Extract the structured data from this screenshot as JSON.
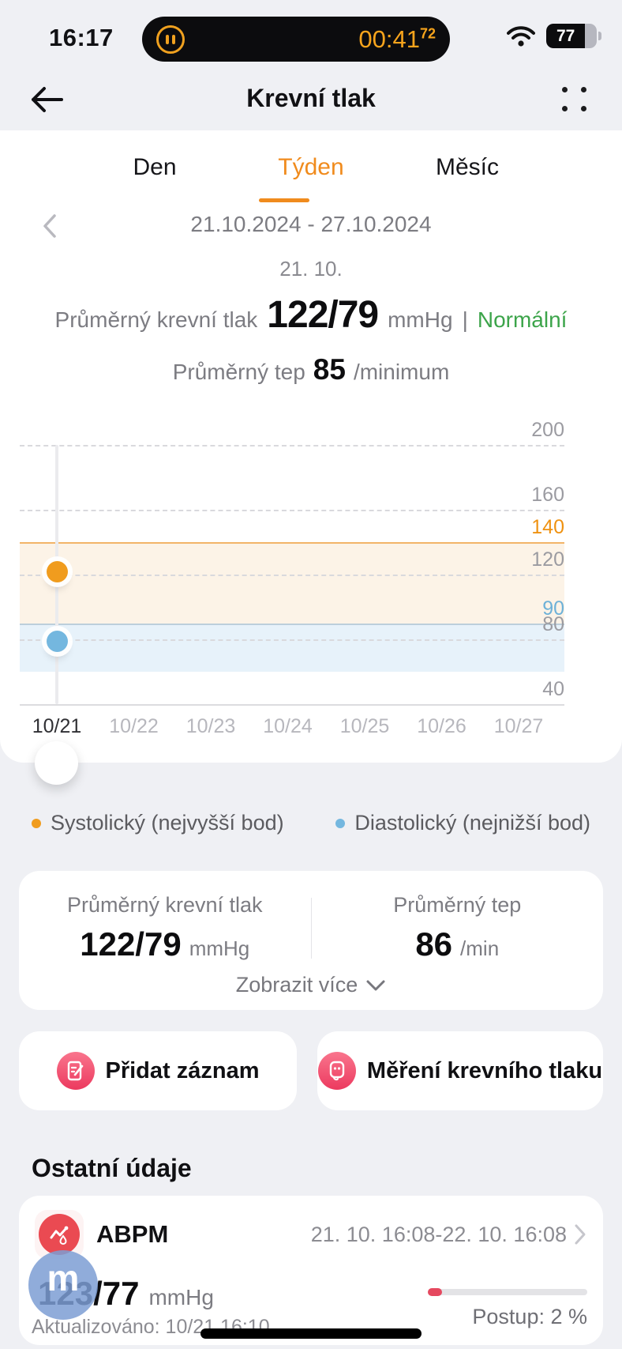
{
  "status_bar": {
    "time": "16:17",
    "timer": "00:41",
    "timer_fraction": "72",
    "battery_percent": "77"
  },
  "header": {
    "title": "Krevní tlak"
  },
  "tabs": {
    "items": [
      {
        "label": "Den"
      },
      {
        "label": "Týden"
      },
      {
        "label": "Měsíc"
      }
    ],
    "active": "Týden"
  },
  "date_nav": {
    "range": "21.10.2024 - 27.10.2024"
  },
  "summary": {
    "day_label": "21. 10.",
    "bp_label": "Průměrný krevní tlak",
    "bp_value": "122/79",
    "bp_unit": "mmHg",
    "separator": "|",
    "bp_status": "Normální",
    "hr_label": "Průměrný tep",
    "hr_value": "85",
    "hr_unit": "/minimum"
  },
  "chart_data": {
    "type": "scatter",
    "x_labels": [
      "10/21",
      "10/22",
      "10/23",
      "10/24",
      "10/25",
      "10/26",
      "10/27"
    ],
    "selected_index": 0,
    "points": [
      {
        "date": "10/21",
        "systolic": 122,
        "diastolic": 79
      }
    ],
    "ylim": [
      40,
      200
    ],
    "y_labels": [
      {
        "v": 200
      },
      {
        "v": 160
      },
      {
        "v": 140,
        "c": "#ef9211"
      },
      {
        "v": 120
      },
      {
        "v": 90,
        "c": "#6db1d8"
      },
      {
        "v": 80
      },
      {
        "v": 40
      }
    ],
    "gridlines": [
      200,
      160,
      120,
      80
    ],
    "ref_lines": [
      {
        "value": 140,
        "color": "#f2b468"
      },
      {
        "value": 90,
        "color": "#bccfdb"
      }
    ],
    "bands": [
      {
        "from": 90,
        "to": 140,
        "color": "#fcf3e7"
      },
      {
        "from": 60,
        "to": 90,
        "color": "#e7f2fa"
      }
    ],
    "colors": {
      "systolic": "#f09c1e",
      "diastolic": "#74b7df"
    },
    "legend_position": "bottom",
    "grid": true
  },
  "legend": {
    "systolic": "Systolický (nejvyšší bod)",
    "diastolic": "Diastolický (nejnižší bod)"
  },
  "stats_card": {
    "bp_label": "Průměrný krevní tlak",
    "bp_value": "122/79",
    "bp_unit": "mmHg",
    "hr_label": "Průměrný tep",
    "hr_value": "86",
    "hr_unit": "/min",
    "more_label": "Zobrazit více"
  },
  "actions": {
    "add_record": "Přidat záznam",
    "measure": "Měření krevního tlaku"
  },
  "other_data": {
    "heading": "Ostatní údaje",
    "abpm": {
      "name": "ABPM",
      "period": "21. 10. 16:08-22. 10. 16:08",
      "value": "123/77",
      "unit": "mmHg",
      "updated": "Aktualizováno: 10/21 16:10",
      "progress_label": "Postup: 2 %",
      "progress_percent": 2
    }
  },
  "bubble": {
    "glyph": "m"
  }
}
